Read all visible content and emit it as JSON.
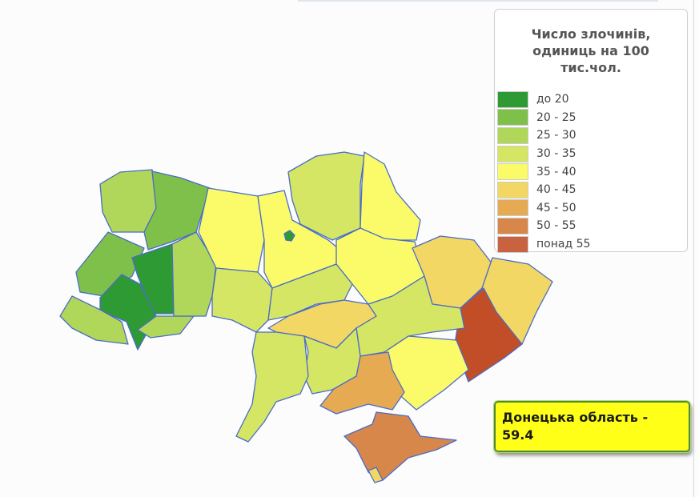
{
  "legend": {
    "title": "Число злочинів, одиниць на 100 тис.чол.",
    "items": [
      {
        "label": "до 20",
        "color": "#2e9a33"
      },
      {
        "label": "20 - 25",
        "color": "#7fc04a"
      },
      {
        "label": "25 - 30",
        "color": "#b0d65a"
      },
      {
        "label": "30 - 35",
        "color": "#d5e664"
      },
      {
        "label": "35 - 40",
        "color": "#fbfb6a"
      },
      {
        "label": "40 - 45",
        "color": "#f2d764"
      },
      {
        "label": "45 - 50",
        "color": "#e6ab52"
      },
      {
        "label": "50 - 55",
        "color": "#d7874a"
      },
      {
        "label": "понад 55",
        "color": "#c9623e"
      }
    ]
  },
  "map": {
    "border_color": "#4a6cc8",
    "highlight_color": "#c24e28",
    "region_bins": [
      2,
      1,
      1,
      0,
      0,
      2,
      2,
      2,
      4,
      4,
      3,
      4,
      4,
      5,
      5,
      8,
      3,
      3,
      5,
      3,
      4,
      6,
      3,
      3,
      7,
      5,
      0
    ]
  },
  "tooltip": {
    "text": "Донецька область - 59.4"
  }
}
